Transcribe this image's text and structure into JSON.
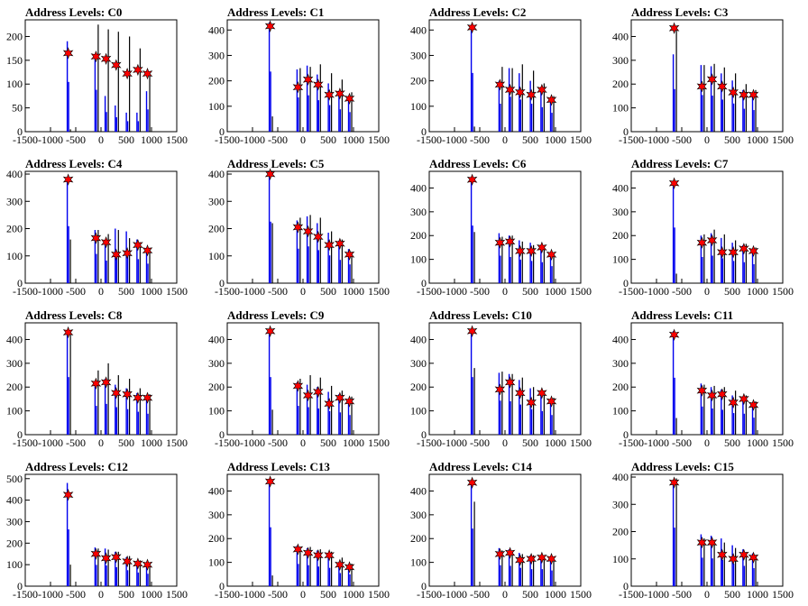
{
  "chart_data": [
    {
      "type": "bar",
      "title": "Address Levels: C0",
      "xlim": [
        -1500,
        1500
      ],
      "ylim": [
        0,
        235
      ],
      "yticks": [
        0,
        50,
        100,
        150,
        200
      ],
      "peaks": [
        -650,
        -100,
        100,
        300,
        520,
        730,
        920
      ],
      "values": [
        165,
        158,
        153,
        140,
        122,
        130,
        122
      ],
      "blue_heights": [
        190,
        160,
        75,
        55,
        40,
        40,
        85
      ],
      "black_heights": [
        5,
        225,
        215,
        210,
        200,
        175,
        120
      ]
    },
    {
      "type": "bar",
      "title": "Address Levels: C1",
      "xlim": [
        -1500,
        1500
      ],
      "ylim": [
        0,
        440
      ],
      "yticks": [
        0,
        100,
        200,
        300,
        400
      ],
      "peaks": [
        -650,
        -100,
        100,
        300,
        520,
        730,
        920
      ],
      "values": [
        415,
        175,
        205,
        185,
        145,
        150,
        130
      ],
      "blue_heights": [
        430,
        245,
        260,
        225,
        190,
        160,
        140
      ],
      "black_heights": [
        60,
        250,
        255,
        265,
        230,
        205,
        155
      ]
    },
    {
      "type": "bar",
      "title": "Address Levels: C2",
      "xlim": [
        -1500,
        1500
      ],
      "ylim": [
        0,
        440
      ],
      "yticks": [
        0,
        100,
        200,
        300,
        400
      ],
      "peaks": [
        -650,
        -100,
        100,
        300,
        520,
        730,
        920
      ],
      "values": [
        410,
        185,
        165,
        155,
        145,
        165,
        125
      ],
      "blue_heights": [
        420,
        200,
        250,
        230,
        200,
        175,
        135
      ],
      "black_heights": [
        20,
        255,
        250,
        265,
        240,
        190,
        140
      ]
    },
    {
      "type": "bar",
      "title": "Address Levels: C3",
      "xlim": [
        -1500,
        1500
      ],
      "ylim": [
        0,
        470
      ],
      "yticks": [
        0,
        100,
        200,
        300,
        400
      ],
      "peaks": [
        -650,
        -100,
        100,
        300,
        520,
        730,
        920
      ],
      "values": [
        435,
        190,
        220,
        190,
        165,
        155,
        155
      ],
      "blue_heights": [
        325,
        280,
        275,
        245,
        215,
        175,
        165
      ],
      "black_heights": [
        425,
        280,
        285,
        270,
        245,
        200,
        175
      ]
    },
    {
      "type": "bar",
      "title": "Address Levels: C4",
      "xlim": [
        -1500,
        1500
      ],
      "ylim": [
        0,
        410
      ],
      "yticks": [
        0,
        100,
        200,
        300,
        400
      ],
      "peaks": [
        -650,
        -100,
        100,
        300,
        520,
        730,
        920
      ],
      "values": [
        380,
        165,
        150,
        105,
        110,
        140,
        120
      ],
      "blue_heights": [
        380,
        195,
        150,
        200,
        190,
        160,
        130
      ],
      "black_heights": [
        160,
        195,
        180,
        195,
        165,
        150,
        130
      ]
    },
    {
      "type": "bar",
      "title": "Address Levels: C5",
      "xlim": [
        -1500,
        1500
      ],
      "ylim": [
        0,
        410
      ],
      "yticks": [
        0,
        100,
        200,
        300,
        400
      ],
      "peaks": [
        -650,
        -100,
        100,
        300,
        520,
        730,
        920
      ],
      "values": [
        400,
        205,
        190,
        170,
        140,
        145,
        105
      ],
      "blue_heights": [
        410,
        230,
        245,
        220,
        185,
        155,
        125
      ],
      "black_heights": [
        220,
        240,
        250,
        240,
        190,
        160,
        115
      ]
    },
    {
      "type": "bar",
      "title": "Address Levels: C6",
      "xlim": [
        -1500,
        1500
      ],
      "ylim": [
        0,
        470
      ],
      "yticks": [
        0,
        100,
        200,
        300,
        400
      ],
      "peaks": [
        -650,
        -100,
        100,
        300,
        520,
        730,
        920
      ],
      "values": [
        435,
        170,
        175,
        135,
        135,
        150,
        120
      ],
      "blue_heights": [
        440,
        210,
        200,
        180,
        170,
        160,
        130
      ],
      "black_heights": [
        215,
        195,
        200,
        175,
        160,
        150,
        125
      ]
    },
    {
      "type": "bar",
      "title": "Address Levels: C7",
      "xlim": [
        -1500,
        1500
      ],
      "ylim": [
        0,
        470
      ],
      "yticks": [
        0,
        100,
        200,
        300,
        400
      ],
      "peaks": [
        -650,
        -100,
        100,
        300,
        520,
        730,
        920
      ],
      "values": [
        420,
        170,
        180,
        130,
        130,
        145,
        135
      ],
      "blue_heights": [
        425,
        200,
        210,
        190,
        170,
        160,
        145
      ],
      "black_heights": [
        40,
        205,
        225,
        205,
        180,
        165,
        150
      ]
    },
    {
      "type": "bar",
      "title": "Address Levels: C8",
      "xlim": [
        -1500,
        1500
      ],
      "ylim": [
        0,
        470
      ],
      "yticks": [
        0,
        100,
        200,
        300,
        400
      ],
      "peaks": [
        -650,
        -100,
        100,
        300,
        520,
        730,
        920
      ],
      "values": [
        430,
        215,
        220,
        175,
        170,
        155,
        155
      ],
      "blue_heights": [
        440,
        220,
        235,
        210,
        195,
        175,
        160
      ],
      "black_heights": [
        420,
        270,
        300,
        250,
        235,
        195,
        170
      ]
    },
    {
      "type": "bar",
      "title": "Address Levels: C9",
      "xlim": [
        -1500,
        1500
      ],
      "ylim": [
        0,
        470
      ],
      "yticks": [
        0,
        100,
        200,
        300,
        400
      ],
      "peaks": [
        -650,
        -100,
        100,
        300,
        520,
        730,
        920
      ],
      "values": [
        435,
        205,
        165,
        180,
        130,
        155,
        140
      ],
      "blue_heights": [
        440,
        220,
        210,
        200,
        180,
        170,
        150
      ],
      "black_heights": [
        105,
        235,
        250,
        240,
        205,
        185,
        160
      ]
    },
    {
      "type": "bar",
      "title": "Address Levels: C10",
      "xlim": [
        -1500,
        1500
      ],
      "ylim": [
        0,
        470
      ],
      "yticks": [
        0,
        100,
        200,
        300,
        400
      ],
      "peaks": [
        -650,
        -100,
        100,
        300,
        520,
        730,
        920
      ],
      "values": [
        435,
        190,
        220,
        175,
        135,
        175,
        140
      ],
      "blue_heights": [
        440,
        260,
        255,
        230,
        195,
        180,
        150
      ],
      "black_heights": [
        280,
        265,
        255,
        240,
        200,
        185,
        155
      ]
    },
    {
      "type": "bar",
      "title": "Address Levels: C11",
      "xlim": [
        -1500,
        1500
      ],
      "ylim": [
        0,
        470
      ],
      "yticks": [
        0,
        100,
        200,
        300,
        400
      ],
      "peaks": [
        -650,
        -100,
        100,
        300,
        520,
        730,
        920
      ],
      "values": [
        420,
        185,
        165,
        170,
        135,
        150,
        125
      ],
      "blue_heights": [
        435,
        215,
        200,
        190,
        165,
        160,
        130
      ],
      "black_heights": [
        70,
        210,
        205,
        200,
        185,
        165,
        140
      ]
    },
    {
      "type": "bar",
      "title": "Address Levels: C12",
      "xlim": [
        -1500,
        1500
      ],
      "ylim": [
        0,
        520
      ],
      "yticks": [
        0,
        100,
        200,
        300,
        400,
        500
      ],
      "peaks": [
        -650,
        -100,
        100,
        300,
        520,
        730,
        920
      ],
      "values": [
        425,
        150,
        130,
        135,
        115,
        105,
        100
      ],
      "blue_heights": [
        480,
        180,
        175,
        160,
        135,
        115,
        105
      ],
      "black_heights": [
        100,
        175,
        170,
        160,
        140,
        120,
        105
      ]
    },
    {
      "type": "bar",
      "title": "Address Levels: C13",
      "xlim": [
        -1500,
        1500
      ],
      "ylim": [
        0,
        470
      ],
      "yticks": [
        0,
        100,
        200,
        300,
        400
      ],
      "peaks": [
        -650,
        -100,
        100,
        300,
        520,
        730,
        920
      ],
      "values": [
        440,
        155,
        140,
        130,
        130,
        90,
        80
      ],
      "blue_heights": [
        450,
        170,
        160,
        150,
        140,
        100,
        90
      ],
      "black_heights": [
        45,
        165,
        165,
        155,
        145,
        120,
        95
      ]
    },
    {
      "type": "bar",
      "title": "Address Levels: C14",
      "xlim": [
        -1500,
        1500
      ],
      "ylim": [
        0,
        470
      ],
      "yticks": [
        0,
        100,
        200,
        300,
        400
      ],
      "peaks": [
        -650,
        -100,
        100,
        300,
        520,
        730,
        920
      ],
      "values": [
        435,
        135,
        140,
        110,
        115,
        120,
        115
      ],
      "blue_heights": [
        440,
        160,
        155,
        140,
        130,
        130,
        120
      ],
      "black_heights": [
        355,
        150,
        150,
        135,
        130,
        125,
        115
      ]
    },
    {
      "type": "bar",
      "title": "Address Levels: C15",
      "xlim": [
        -1500,
        1500
      ],
      "ylim": [
        0,
        410
      ],
      "yticks": [
        0,
        100,
        200,
        300,
        400
      ],
      "peaks": [
        -650,
        -100,
        100,
        300,
        520,
        730,
        920
      ],
      "values": [
        380,
        160,
        160,
        115,
        100,
        115,
        105
      ],
      "blue_heights": [
        390,
        190,
        185,
        175,
        150,
        135,
        120
      ],
      "black_heights": [
        395,
        175,
        170,
        160,
        140,
        125,
        115
      ]
    }
  ],
  "xticks": [
    -1500,
    -1000,
    -500,
    0,
    500,
    1000,
    1500
  ]
}
